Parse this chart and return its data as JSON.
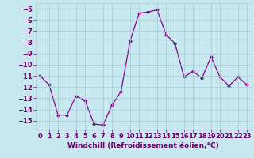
{
  "x": [
    0,
    1,
    2,
    3,
    4,
    5,
    6,
    7,
    8,
    9,
    10,
    11,
    12,
    13,
    14,
    15,
    16,
    17,
    18,
    19,
    20,
    21,
    22,
    23
  ],
  "y": [
    -11,
    -11.8,
    -14.5,
    -14.5,
    -12.8,
    -13.2,
    -15.3,
    -15.4,
    -13.6,
    -12.4,
    -7.9,
    -5.4,
    -5.3,
    -5.1,
    -7.3,
    -8.1,
    -11.1,
    -10.6,
    -11.2,
    -9.3,
    -11.1,
    -11.9,
    -11.1,
    -11.8
  ],
  "xlim": [
    -0.5,
    23.5
  ],
  "ylim": [
    -15.8,
    -4.5
  ],
  "yticks": [
    -15,
    -14,
    -13,
    -12,
    -11,
    -10,
    -9,
    -8,
    -7,
    -6,
    -5
  ],
  "xticks": [
    0,
    1,
    2,
    3,
    4,
    5,
    6,
    7,
    8,
    9,
    10,
    11,
    12,
    13,
    14,
    15,
    16,
    17,
    18,
    19,
    20,
    21,
    22,
    23
  ],
  "line_color": "#880088",
  "marker": "D",
  "marker_size": 2.0,
  "line_width": 0.9,
  "bg_color": "#c8e8f0",
  "grid_color": "#a8c8d8",
  "xlabel": "Windchill (Refroidissement éolien,°C)",
  "xlabel_fontsize": 6.5,
  "tick_fontsize": 6.0,
  "tick_color": "#660066"
}
